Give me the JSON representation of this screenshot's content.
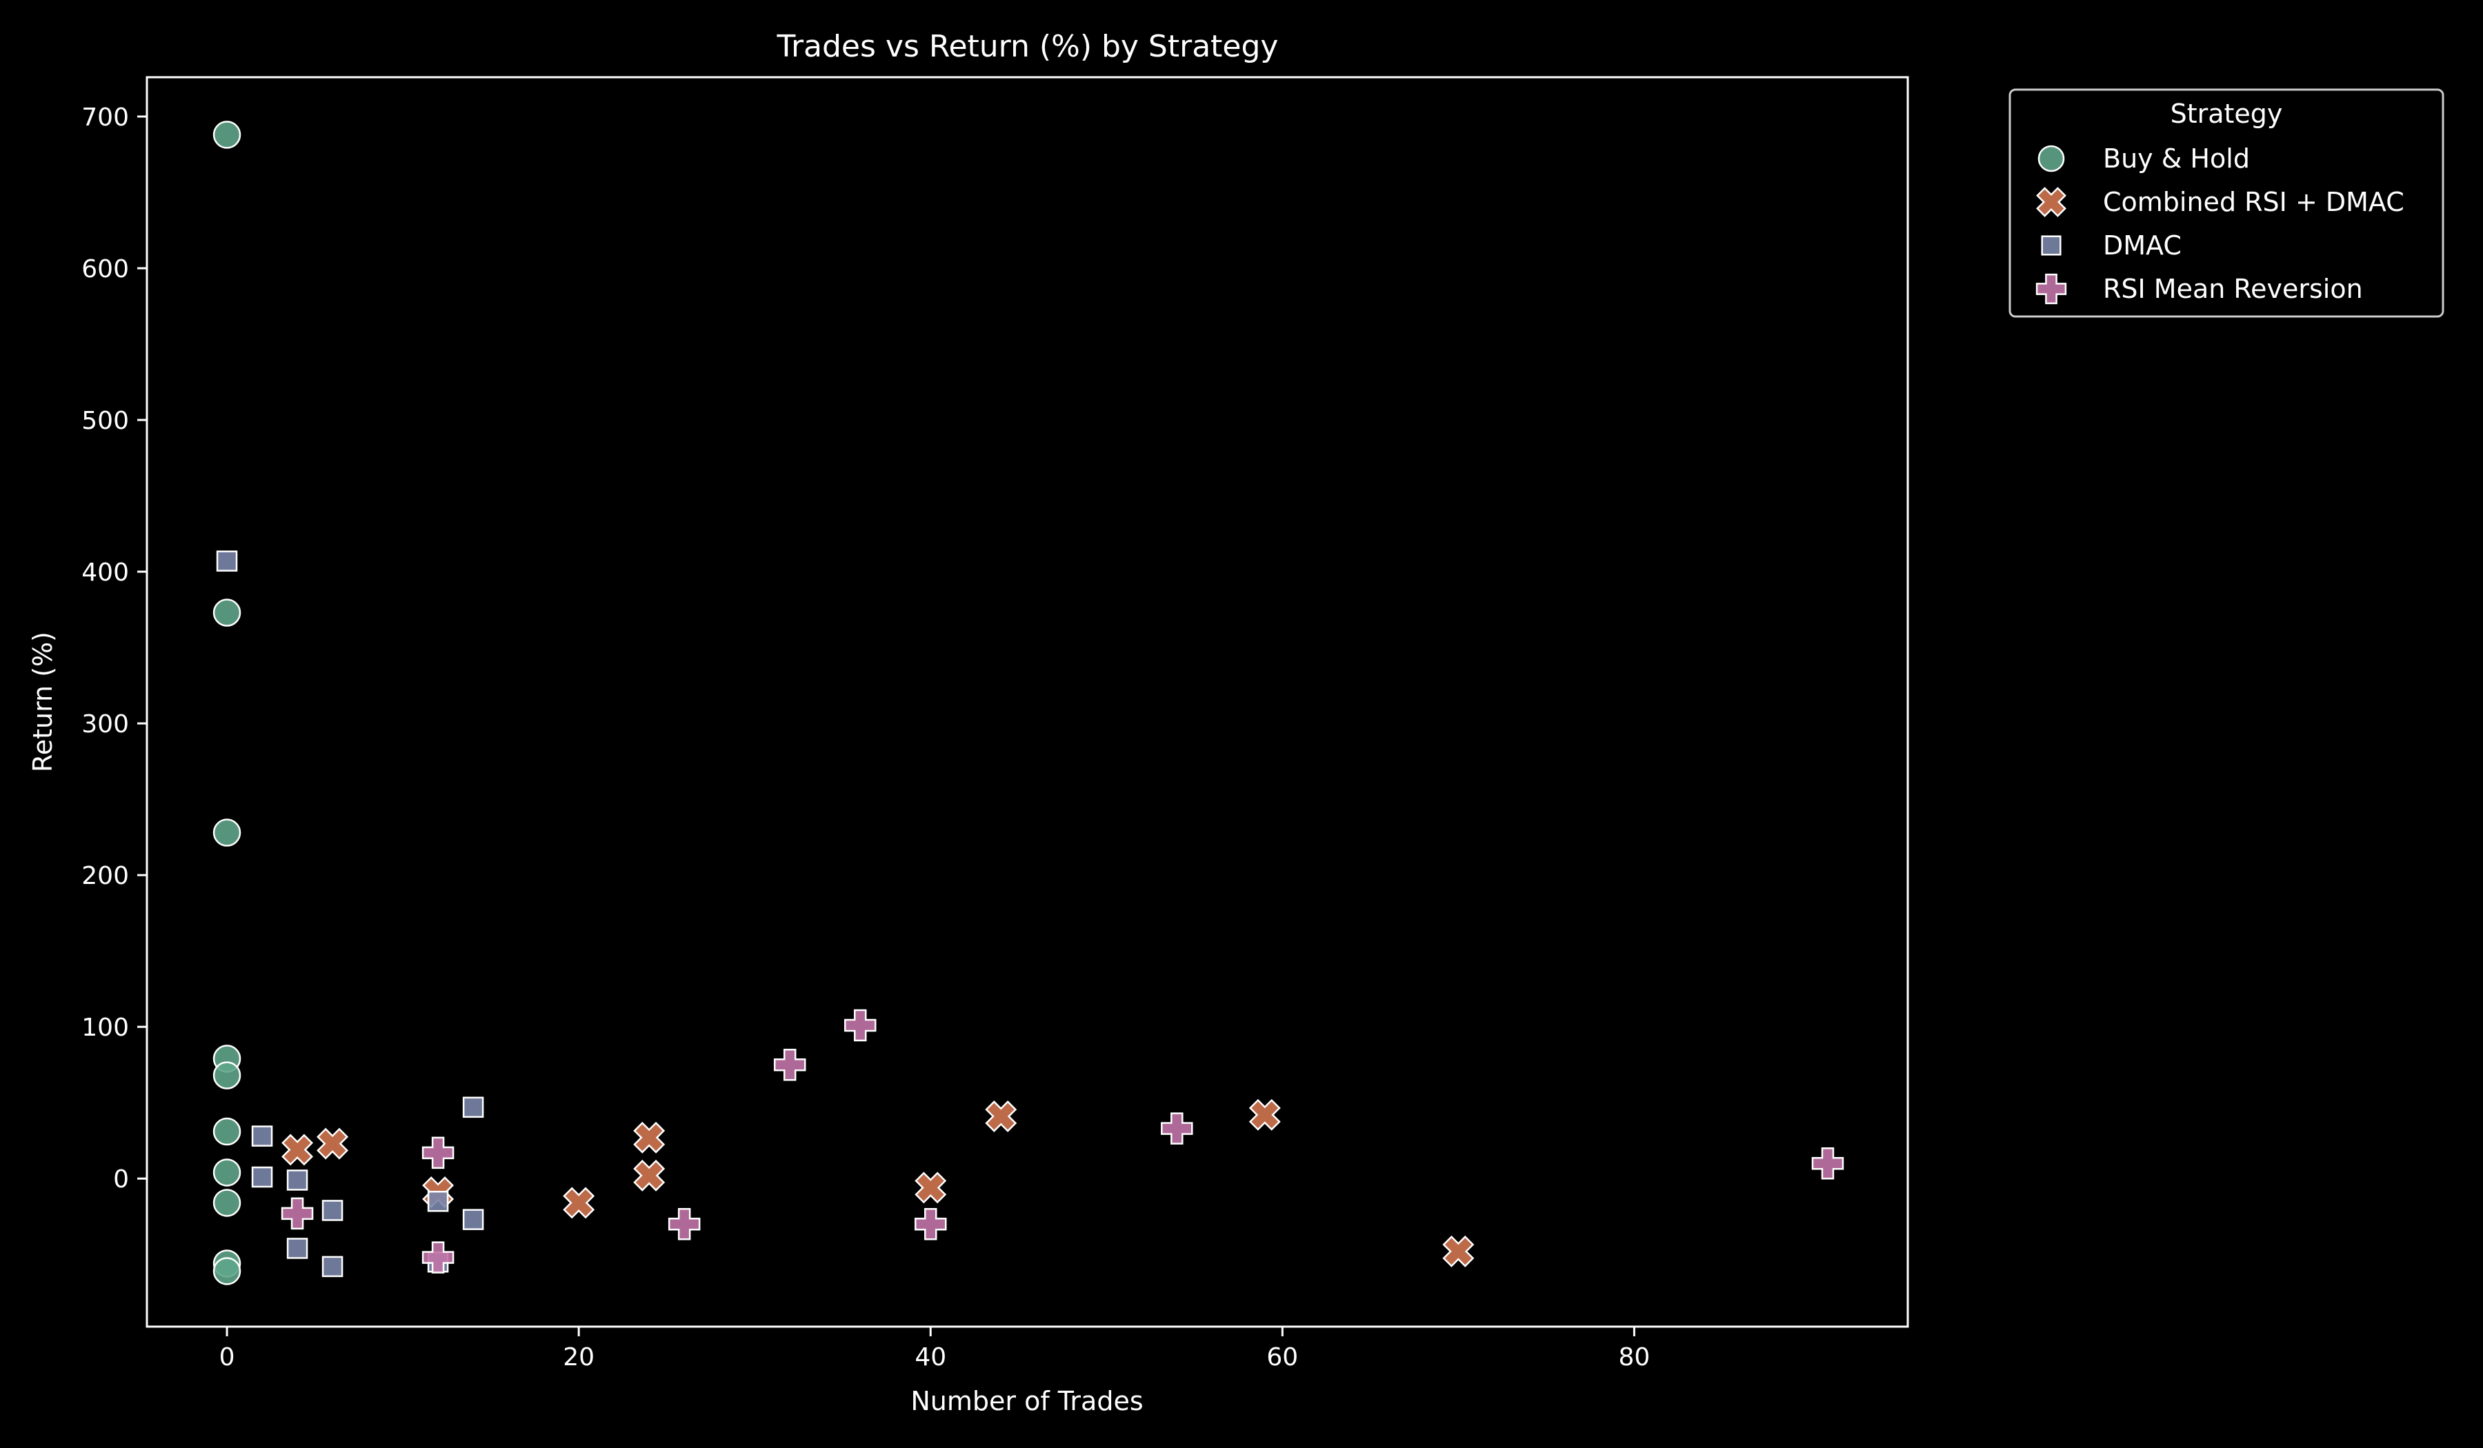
{
  "chart_data": {
    "type": "scatter",
    "title": "Trades vs Return (%) by Strategy",
    "xlabel": "Number of Trades",
    "ylabel": "Return (%)",
    "xlim": [
      -4.55,
      95.55
    ],
    "ylim": [
      -97.6,
      725.9
    ],
    "xticks": [
      0,
      20,
      40,
      60,
      80
    ],
    "yticks": [
      0,
      100,
      200,
      300,
      400,
      500,
      600,
      700
    ],
    "grid": false,
    "legend": {
      "title": "Strategy",
      "placement": "outside-top-right"
    },
    "series": [
      {
        "name": "Buy & Hold",
        "marker": "circle",
        "color": "#5fa58a",
        "points": [
          [
            0,
            688
          ],
          [
            0,
            373
          ],
          [
            0,
            228
          ],
          [
            0,
            79
          ],
          [
            0,
            68
          ],
          [
            0,
            31
          ],
          [
            0,
            4
          ],
          [
            0,
            -16
          ],
          [
            0,
            -56
          ],
          [
            0,
            -61
          ]
        ]
      },
      {
        "name": "Combined RSI + DMAC",
        "marker": "x",
        "color": "#d27650",
        "points": [
          [
            4,
            19
          ],
          [
            6,
            23
          ],
          [
            12,
            -9
          ],
          [
            20,
            -16
          ],
          [
            24,
            27
          ],
          [
            24,
            2
          ],
          [
            40,
            -6
          ],
          [
            44,
            41
          ],
          [
            59,
            42
          ],
          [
            70,
            -48
          ]
        ]
      },
      {
        "name": "DMAC",
        "marker": "square",
        "color": "#7a86aa",
        "points": [
          [
            0,
            407
          ],
          [
            2,
            28
          ],
          [
            2,
            1
          ],
          [
            4,
            -1
          ],
          [
            4,
            -46
          ],
          [
            6,
            -21
          ],
          [
            6,
            -58
          ],
          [
            12,
            -15
          ],
          [
            12,
            -55
          ],
          [
            14,
            47
          ],
          [
            14,
            -27
          ]
        ]
      },
      {
        "name": "RSI Mean Reversion",
        "marker": "plus",
        "color": "#c274a8",
        "points": [
          [
            4,
            -23
          ],
          [
            12,
            17
          ],
          [
            12,
            -52
          ],
          [
            26,
            -30
          ],
          [
            32,
            75
          ],
          [
            36,
            101
          ],
          [
            40,
            -30
          ],
          [
            54,
            33
          ],
          [
            91,
            10
          ]
        ]
      }
    ]
  }
}
